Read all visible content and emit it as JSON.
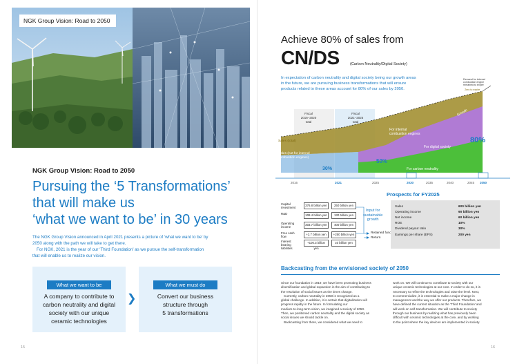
{
  "left": {
    "photo_label": "NGK Group Vision: Road to 2050",
    "heading_small": "NGK Group Vision: Road to 2050",
    "big_title": [
      "Pursuing the ‘5 Transformations’",
      "that will make us",
      "‘what we want to be’ in 30 years"
    ],
    "intro": [
      "The NGK Group Vision announced in April 2021 presents a picture of ‘what we want to be’ by",
      "2050 along with the path we will take to get there.",
      "For NGK, 2021 is the year of our ‘Third Foundation’ as we pursue the self-transformation",
      "that will enable us to realize our vision."
    ],
    "box1": {
      "tag": "What we want to be",
      "text": [
        "A company to contribute to",
        "carbon neutrality and digital",
        "society with our unique",
        "ceramic technologies"
      ]
    },
    "box2": {
      "tag": "What we must do",
      "text": [
        "Convert our business",
        "structure through",
        "5 transformations"
      ]
    },
    "page_number": "15"
  },
  "right": {
    "title1": "Achieve 80% of sales from",
    "title2": "CN/DS",
    "title2_sub": "(Carbon Neutrality/Digital Society)",
    "desc": [
      "In expectation of carbon neutrality and digital society being our growth areas",
      "in the future, we are pursuing business transformations that will ensure",
      "products related to these areas account for 80% of our sales by 2050."
    ],
    "chart_labels": {
      "fiscal1": [
        "Fiscal",
        "2016–2020",
        "total"
      ],
      "fiscal2": [
        "Fiscal",
        "2021–2025",
        "total"
      ],
      "sales_total": "Sales (total)",
      "sales_not_ice": [
        "Sales (not for internal",
        "combustion engines)"
      ],
      "ice": [
        "For internal",
        "combustion engines"
      ],
      "digital": "For digital society",
      "carbon": "For carbon neutrality",
      "growth": "Growth",
      "demand_note": [
        "Demand for internal",
        "combustion engine",
        "remained to expire"
      ],
      "zero": "Zero to expire",
      "percent_30": "30%",
      "percent_50": "50%",
      "percent_80": "80%",
      "years": [
        "2016",
        "2021",
        "2025",
        "2030",
        "2035",
        "2040",
        "2045",
        "2050"
      ]
    },
    "fin_rows": [
      {
        "label": "Capital investment",
        "c1": "376.8 billion yen",
        "c2": "250 billion yen"
      },
      {
        "label": "R&D",
        "c1": "108.4 billion yen",
        "c2": "130 billion yen"
      },
      {
        "label": "Operating income",
        "c1": "303.7 billion yen",
        "c2": "400 billion yen"
      },
      {
        "label": "Free cash flow",
        "c1": "+2.7 billion yen",
        "c2": "+250 billion yen"
      },
      {
        "label": "Interest bearing liabilities",
        "c1": "+100.3 billion yen",
        "c2": "±0 billion yen"
      }
    ],
    "input_growth": [
      "Input for",
      "sustainable",
      "growth"
    ],
    "retained_funds": "Retained funds",
    "return": "Return",
    "prospects_title": "Prospects for FY2025",
    "prospects": [
      {
        "k": "Sales",
        "v": "600 billion yen"
      },
      {
        "k": "Operating income",
        "v": "90 billion yen"
      },
      {
        "k": "Net income",
        "v": "60 billion yen"
      },
      {
        "k": "ROE",
        "v": "10%"
      },
      {
        "k": "Dividend payout ratio",
        "v": "30%"
      },
      {
        "k": "Earnings per share (EPS)",
        "v": "200 yen"
      }
    ],
    "bc_title": "Backcasting from the envisioned society of 2050",
    "col1": [
      "Since our foundation in 1919, we have been promoting business",
      "diversification and global expansion in the aim of contributing to",
      "the resolution of social issues as the times change.",
      "Currently, carbon neutrality in 2050 is recognized as a",
      "global challenge. In addition, it is certain that digitalization will",
      "progress rapidly in the future. In formulating our",
      "medium-to-long-term vision, we imagined a society of 2050.",
      "Then, we positioned carbon neutrality and the digital society as",
      "social issues we should tackle on.",
      "Backcasting from there, we considered what we need to"
    ],
    "col2": [
      "work on. We will continue to contribute to society with our",
      "unique ceramic technologies at our core. In order to do so, it is",
      "necessary to refine the technologies and raise the level. Next,",
      "to commercialize, it is essential to make a major change in",
      "management and the way we offer our products. Therefore, we",
      "have defined the current situation as the ‘Third Foundation’ and",
      "will work on self-transformation. We will contribute to society",
      "through our business by realizing what has previously been",
      "difficult with ceramic technologies at the core, and by working",
      "to the point where the key devices are implemented in society."
    ],
    "page_number": "16"
  },
  "colors": {
    "accent": "#1c7cc4",
    "box_bg": "#e4f1fb",
    "ice": "#a39033",
    "digital": "#b07bd4",
    "carbon": "#4cbf3a"
  }
}
